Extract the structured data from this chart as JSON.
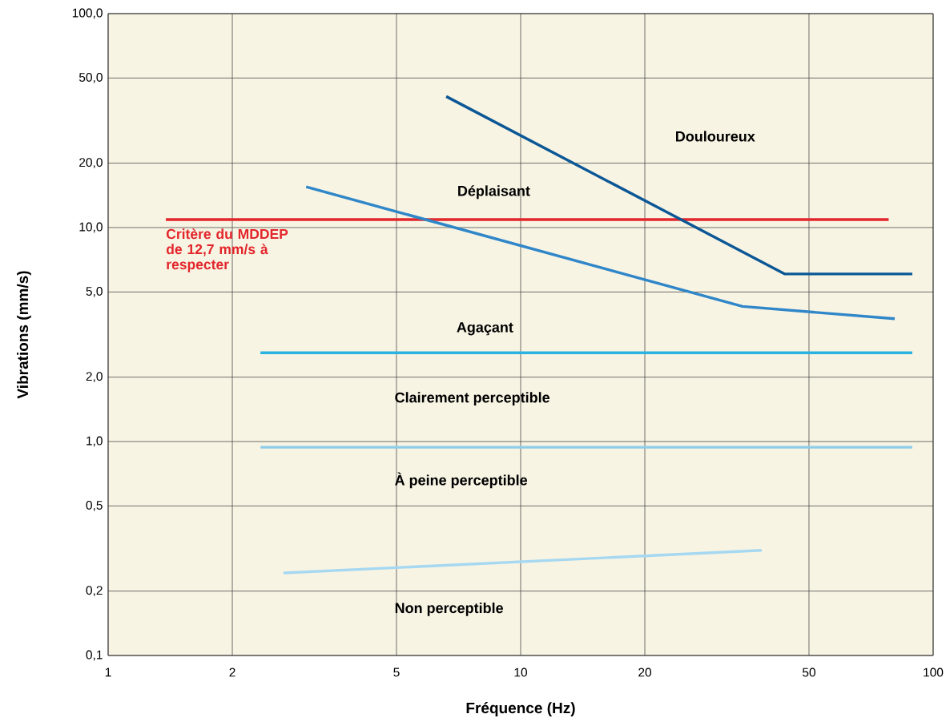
{
  "chart_data": {
    "type": "line",
    "xlabel": "Fréquence (Hz)",
    "ylabel": "Vibrations (mm/s)",
    "log": "xy",
    "grid": true,
    "xlim": [
      1,
      100
    ],
    "ylim": [
      0.1,
      100
    ],
    "xticks": [
      1,
      2,
      5,
      10,
      20,
      50,
      100
    ],
    "yticks": [
      {
        "value": 0.1,
        "label": "0,1"
      },
      {
        "value": 0.2,
        "label": "0,2"
      },
      {
        "value": 0.5,
        "label": "0,5"
      },
      {
        "value": 1,
        "label": "1,0"
      },
      {
        "value": 2,
        "label": "2,0"
      },
      {
        "value": 5,
        "label": "5,0"
      },
      {
        "value": 10,
        "label": "10,0"
      },
      {
        "value": 20,
        "label": "20,0"
      },
      {
        "value": 50,
        "label": "50,0"
      },
      {
        "value": 100,
        "label": "100,0"
      }
    ],
    "series": [
      {
        "name": "Critère du MDDEP de 12,7 mm/s à respecter",
        "color": "#e3262b",
        "x": [
          1.38,
          78
        ],
        "values": [
          10.9,
          10.9
        ]
      },
      {
        "color": "#0b5796",
        "x": [
          6.6,
          43.7,
          89
        ],
        "values": [
          41,
          6.07,
          6.07
        ]
      },
      {
        "color": "#2f86c8",
        "x": [
          3.02,
          34.5,
          80.7
        ],
        "values": [
          15.5,
          4.28,
          3.75
        ]
      },
      {
        "color": "#2bb2e0",
        "x": [
          2.34,
          89
        ],
        "values": [
          2.6,
          2.6
        ]
      },
      {
        "color": "#8ecdea",
        "x": [
          2.34,
          89
        ],
        "values": [
          0.94,
          0.94
        ]
      },
      {
        "color": "#a6d8f1",
        "x": [
          2.66,
          38.4
        ],
        "values": [
          0.243,
          0.31
        ]
      }
    ],
    "annotations": [
      "Douloureux",
      "Déplaisant",
      "Agaçant",
      "Clairement perceptible",
      "À peine perceptible",
      "Non perceptible"
    ]
  }
}
